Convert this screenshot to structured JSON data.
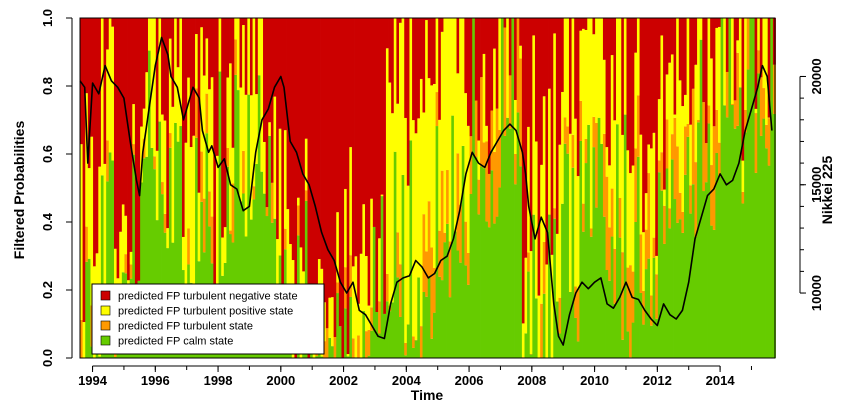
{
  "chart_data": {
    "type": "area",
    "xlabel": "Time",
    "ylabel": "Filtered Probabilities",
    "y2label": "Nikkei 225",
    "xlim": [
      1993.6,
      2015.75
    ],
    "ylim": [
      0,
      1
    ],
    "y2lim": [
      7000,
      22700
    ],
    "x_ticks": [
      "1994",
      "1996",
      "1998",
      "2000",
      "2002",
      "2004",
      "2006",
      "2008",
      "2010",
      "2012",
      "2014"
    ],
    "y_ticks": [
      "0.0",
      "0.2",
      "0.4",
      "0.6",
      "0.8",
      "1.0"
    ],
    "y2_ticks": [
      "10000",
      "15000",
      "20000"
    ],
    "grid": false,
    "legend_position": "bottom-left",
    "series": [
      {
        "name": "predicted FP turbulent negative state",
        "color": "#cc0000"
      },
      {
        "name": "predicted FP turbulent positive state",
        "color": "#ffff00"
      },
      {
        "name": "predicted FP turbulent state",
        "color": "#ff9900"
      },
      {
        "name": "predicted FP calm state",
        "color": "#66cc00"
      }
    ],
    "state_regimes": [
      {
        "start": 1993.6,
        "end": 1994.5,
        "calm": 0.15,
        "turb": 0.0,
        "pos": 0.35
      },
      {
        "start": 1994.5,
        "end": 1995.5,
        "calm": 0.2,
        "turb": 0.0,
        "pos": 0.2
      },
      {
        "start": 1995.5,
        "end": 1996.8,
        "calm": 0.55,
        "turb": 0.0,
        "pos": 0.3
      },
      {
        "start": 1996.8,
        "end": 1998.0,
        "calm": 0.3,
        "turb": 0.05,
        "pos": 0.3
      },
      {
        "start": 1998.0,
        "end": 1999.5,
        "calm": 0.45,
        "turb": 0.05,
        "pos": 0.3
      },
      {
        "start": 1999.5,
        "end": 2000.3,
        "calm": 0.3,
        "turb": 0.0,
        "pos": 0.2
      },
      {
        "start": 2000.3,
        "end": 2003.3,
        "calm": 0.05,
        "turb": 0.0,
        "pos": 0.1
      },
      {
        "start": 2003.3,
        "end": 2004.5,
        "calm": 0.2,
        "turb": 0.05,
        "pos": 0.6
      },
      {
        "start": 2004.5,
        "end": 2006.0,
        "calm": 0.3,
        "turb": 0.2,
        "pos": 0.45
      },
      {
        "start": 2006.0,
        "end": 2007.6,
        "calm": 0.6,
        "turb": 0.2,
        "pos": 0.1
      },
      {
        "start": 2007.6,
        "end": 2008.5,
        "calm": 0.1,
        "turb": 0.05,
        "pos": 0.3
      },
      {
        "start": 2008.5,
        "end": 2009.0,
        "calm": 0.05,
        "turb": 0.0,
        "pos": 0.3
      },
      {
        "start": 2009.0,
        "end": 2010.0,
        "calm": 0.25,
        "turb": 0.05,
        "pos": 0.45
      },
      {
        "start": 2010.0,
        "end": 2011.0,
        "calm": 0.3,
        "turb": 0.2,
        "pos": 0.3
      },
      {
        "start": 2011.0,
        "end": 2012.0,
        "calm": 0.25,
        "turb": 0.15,
        "pos": 0.3
      },
      {
        "start": 2012.0,
        "end": 2013.0,
        "calm": 0.55,
        "turb": 0.15,
        "pos": 0.2
      },
      {
        "start": 2013.0,
        "end": 2014.0,
        "calm": 0.6,
        "turb": 0.2,
        "pos": 0.15
      },
      {
        "start": 2014.0,
        "end": 2015.75,
        "calm": 0.7,
        "turb": 0.15,
        "pos": 0.1
      }
    ],
    "nikkei": {
      "name": "Nikkei 225",
      "color": "#000000",
      "x": [
        1993.6,
        1993.75,
        1993.85,
        1994.0,
        1994.2,
        1994.4,
        1994.6,
        1994.8,
        1995.0,
        1995.2,
        1995.4,
        1995.5,
        1995.6,
        1995.8,
        1996.0,
        1996.2,
        1996.4,
        1996.5,
        1996.7,
        1996.9,
        1997.0,
        1997.2,
        1997.4,
        1997.5,
        1997.7,
        1997.8,
        1998.0,
        1998.2,
        1998.4,
        1998.6,
        1998.8,
        1999.0,
        1999.2,
        1999.4,
        1999.6,
        1999.8,
        2000.0,
        2000.1,
        2000.3,
        2000.5,
        2000.7,
        2000.9,
        2001.1,
        2001.3,
        2001.5,
        2001.7,
        2001.9,
        2002.1,
        2002.3,
        2002.5,
        2002.7,
        2002.9,
        2003.1,
        2003.3,
        2003.5,
        2003.7,
        2003.9,
        2004.1,
        2004.3,
        2004.5,
        2004.7,
        2004.9,
        2005.1,
        2005.3,
        2005.5,
        2005.7,
        2005.9,
        2006.1,
        2006.3,
        2006.5,
        2006.7,
        2006.9,
        2007.1,
        2007.3,
        2007.5,
        2007.7,
        2007.8,
        2007.9,
        2008.1,
        2008.3,
        2008.5,
        2008.7,
        2008.85,
        2009.0,
        2009.2,
        2009.4,
        2009.6,
        2009.8,
        2010.0,
        2010.2,
        2010.4,
        2010.6,
        2010.8,
        2011.0,
        2011.2,
        2011.4,
        2011.6,
        2011.8,
        2012.0,
        2012.2,
        2012.4,
        2012.6,
        2012.8,
        2013.0,
        2013.2,
        2013.4,
        2013.6,
        2013.8,
        2014.0,
        2014.2,
        2014.4,
        2014.6,
        2014.8,
        2015.0,
        2015.2,
        2015.35,
        2015.5,
        2015.65
      ],
      "y": [
        19800,
        19500,
        16000,
        19700,
        19200,
        20500,
        19800,
        19500,
        19000,
        17000,
        15200,
        14500,
        16500,
        18500,
        20500,
        21800,
        21000,
        20000,
        19500,
        18000,
        18500,
        19500,
        19000,
        17500,
        16500,
        16800,
        15800,
        16200,
        15000,
        14800,
        13800,
        14000,
        16500,
        18000,
        18500,
        19500,
        20000,
        19500,
        17000,
        16500,
        15500,
        15000,
        14000,
        12800,
        12000,
        11500,
        10500,
        10000,
        10500,
        9200,
        9000,
        8500,
        8000,
        7900,
        9500,
        10500,
        10700,
        10800,
        11500,
        11200,
        10700,
        10900,
        11500,
        11700,
        12500,
        13800,
        15500,
        16500,
        16000,
        15800,
        16500,
        17000,
        17500,
        17800,
        17500,
        16500,
        15500,
        14000,
        12500,
        13500,
        12800,
        9500,
        8000,
        7600,
        9000,
        10000,
        10500,
        10200,
        10500,
        10700,
        9500,
        9300,
        9800,
        10500,
        9800,
        9700,
        9200,
        8800,
        8500,
        9500,
        9000,
        8800,
        9200,
        10500,
        12500,
        13500,
        14500,
        14800,
        15500,
        15000,
        15200,
        16000,
        17500,
        18500,
        19500,
        20500,
        20000,
        17500
      ]
    }
  }
}
